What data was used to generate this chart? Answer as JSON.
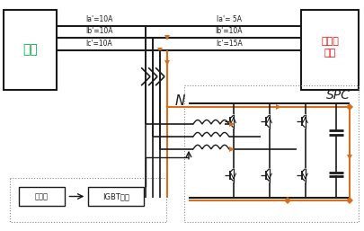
{
  "bg_color": "#ffffff",
  "lc": "#1a1a1a",
  "oc": "#d47020",
  "gc": "#00aa44",
  "rc": "#ee0000",
  "figsize": [
    4.05,
    2.57
  ],
  "dpi": 100,
  "left_box_label": "电网",
  "right_box_label": "不平衡\n负载",
  "spc_label": "SPC",
  "N_label": "N",
  "ctrl_label": "控制器",
  "igbt_label": "IGBT驱动",
  "line_labels_left": [
    "Ia'=10A",
    "Ib'=10A",
    "Ic'=10A"
  ],
  "line_labels_right": [
    "Ia'= 5A",
    "Ib'=10A",
    "Ic'=15A"
  ]
}
